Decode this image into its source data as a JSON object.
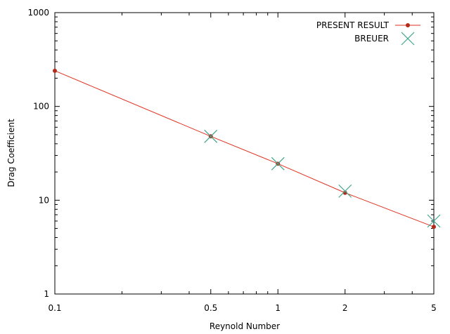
{
  "chart_data": {
    "type": "line",
    "title": "",
    "xlabel": "Reynold Number",
    "ylabel": "Drag Coefficient",
    "xscale": "log",
    "yscale": "log",
    "xlim": [
      0.1,
      5
    ],
    "ylim": [
      1,
      1000
    ],
    "grid": false,
    "legend_position": "top-right",
    "xticks": [
      {
        "value": 0.1,
        "label": "0.1"
      },
      {
        "value": 0.5,
        "label": "0.5"
      },
      {
        "value": 1,
        "label": "1"
      },
      {
        "value": 2,
        "label": "2"
      },
      {
        "value": 5,
        "label": "5"
      }
    ],
    "yticks": [
      {
        "value": 1,
        "label": "1"
      },
      {
        "value": 10,
        "label": "10"
      },
      {
        "value": 100,
        "label": "100"
      },
      {
        "value": 1000,
        "label": "1000"
      }
    ],
    "series": [
      {
        "name": "PRESENT RESULT",
        "style": "line-points",
        "color": "#e0301e",
        "point_color": "#b22a1a",
        "x": [
          0.1,
          0.5,
          1,
          2,
          5
        ],
        "y": [
          240,
          48,
          24.5,
          12,
          5.2
        ]
      },
      {
        "name": "BREUER",
        "style": "cross",
        "color": "#3fa68c",
        "x": [
          0.5,
          1,
          2,
          5
        ],
        "y": [
          48,
          24.5,
          12.5,
          6
        ]
      }
    ]
  }
}
